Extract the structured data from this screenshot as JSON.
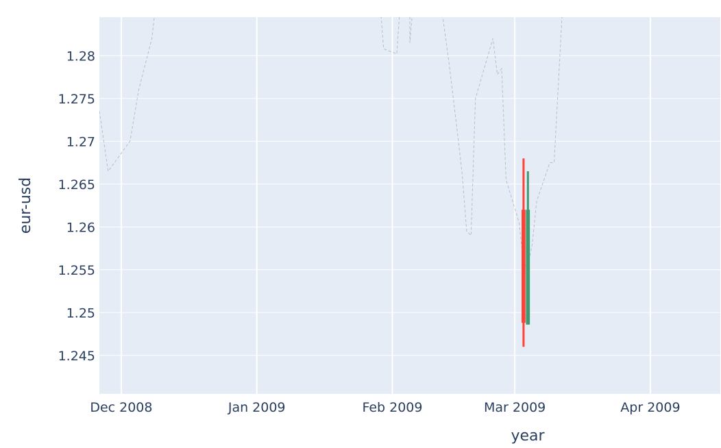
{
  "chart_data": {
    "type": "candlestick",
    "xlabel": "year",
    "ylabel": "eur-usd",
    "xlim": [
      "2008-11-26",
      "2009-04-17"
    ],
    "ylim": [
      1.2405,
      1.2845
    ],
    "x_ticks": [
      {
        "value": "2008-12-01",
        "label": "Dec 2008"
      },
      {
        "value": "2009-01-01",
        "label": "Jan 2009"
      },
      {
        "value": "2009-02-01",
        "label": "Feb 2009"
      },
      {
        "value": "2009-03-01",
        "label": "Mar 2009"
      },
      {
        "value": "2009-04-01",
        "label": "Apr 2009"
      }
    ],
    "y_ticks": [
      {
        "value": 1.245,
        "label": "1.245"
      },
      {
        "value": 1.25,
        "label": "1.25"
      },
      {
        "value": 1.255,
        "label": "1.255"
      },
      {
        "value": 1.26,
        "label": "1.26"
      },
      {
        "value": 1.265,
        "label": "1.265"
      },
      {
        "value": 1.27,
        "label": "1.27"
      },
      {
        "value": 1.275,
        "label": "1.275"
      },
      {
        "value": 1.28,
        "label": "1.28"
      }
    ],
    "grid": true,
    "colors": {
      "background": "#e5ecf6",
      "grid": "#ffffff",
      "increasing": "#3d9970",
      "decreasing": "#ff4136",
      "reference_line": "#b6bccb",
      "text": "#2a3f5f"
    },
    "candles": [
      {
        "date": "2009-03-03",
        "open": 1.262,
        "high": 1.268,
        "low": 1.246,
        "close": 1.2488
      },
      {
        "date": "2009-03-04",
        "open": 1.2486,
        "high": 1.2665,
        "low": 1.2486,
        "close": 1.262
      }
    ],
    "reference_line": {
      "style": "dashed",
      "points": [
        [
          "2008-11-26",
          1.2735
        ],
        [
          "2008-11-28",
          1.2665
        ],
        [
          "2008-12-03",
          1.27
        ],
        [
          "2008-12-05",
          1.276
        ],
        [
          "2008-12-08",
          1.282
        ],
        [
          "2008-12-09",
          1.2865
        ],
        [
          "2009-01-29",
          1.2875
        ],
        [
          "2009-01-30",
          1.2808
        ],
        [
          "2009-02-02",
          1.2802
        ],
        [
          "2009-02-03",
          1.2875
        ],
        [
          "2009-02-05",
          1.2875
        ],
        [
          "2009-02-05",
          1.2815
        ],
        [
          "2009-02-06",
          1.2875
        ],
        [
          "2009-02-12",
          1.2865
        ],
        [
          "2009-02-14",
          1.279
        ],
        [
          "2009-02-16",
          1.2705
        ],
        [
          "2009-02-17",
          1.266
        ],
        [
          "2009-02-18",
          1.2595
        ],
        [
          "2009-02-19",
          1.259
        ],
        [
          "2009-02-20",
          1.275
        ],
        [
          "2009-02-24",
          1.282
        ],
        [
          "2009-02-25",
          1.2778
        ],
        [
          "2009-02-26",
          1.2785
        ],
        [
          "2009-02-27",
          1.2655
        ],
        [
          "2009-03-02",
          1.2605
        ],
        [
          "2009-03-03",
          1.2555
        ],
        [
          "2009-03-04",
          1.2555
        ],
        [
          "2009-03-05",
          1.258
        ],
        [
          "2009-03-06",
          1.263
        ],
        [
          "2009-03-09",
          1.2675
        ],
        [
          "2009-03-10",
          1.2675
        ],
        [
          "2009-03-12",
          1.2865
        ]
      ]
    }
  }
}
